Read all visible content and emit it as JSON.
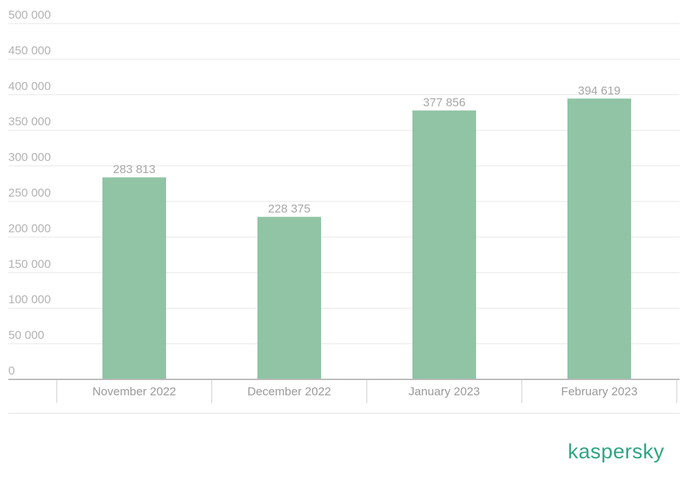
{
  "brand": {
    "logo_text": "kaspersky",
    "color": "#2ea67f"
  },
  "colors": {
    "bar": "#90c4a5",
    "grid": "#e6e6e6",
    "axis": "#b8b8b8",
    "tick_text": "#b3b3b3"
  },
  "chart_data": {
    "type": "bar",
    "categories": [
      "November 2022",
      "December 2022",
      "January 2023",
      "February 2023"
    ],
    "values": [
      283813,
      228375,
      377856,
      394619
    ],
    "data_labels": [
      "283 813",
      "228 375",
      "377 856",
      "394 619"
    ],
    "y_ticks": [
      0,
      50000,
      100000,
      150000,
      200000,
      250000,
      300000,
      350000,
      400000,
      450000,
      500000
    ],
    "y_tick_labels": [
      "0",
      "50 000",
      "100 000",
      "150 000",
      "200 000",
      "250 000",
      "300 000",
      "350 000",
      "400 000",
      "450 000",
      "500 000"
    ],
    "ylim": [
      0,
      500000
    ],
    "title": "",
    "xlabel": "",
    "ylabel": "",
    "grid": true,
    "legend": "none"
  }
}
